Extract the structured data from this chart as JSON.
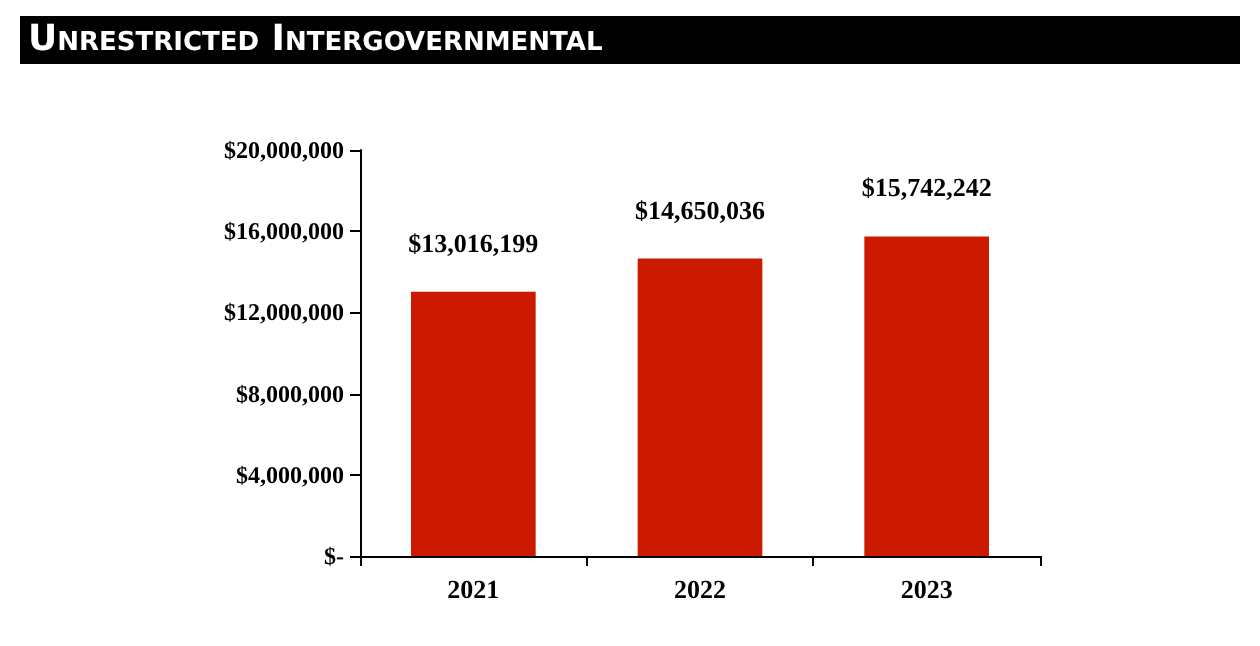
{
  "chart_data": {
    "type": "bar",
    "title": "Unrestricted Intergovernmental",
    "categories": [
      "2021",
      "2022",
      "2023"
    ],
    "values": [
      13016199,
      14650036,
      15742242
    ],
    "value_labels": [
      "$13,016,199",
      "$14,650,036",
      "$15,742,242"
    ],
    "color": "#cc1a00",
    "ylim": [
      0,
      20000000
    ],
    "yticks": [
      {
        "value": 0,
        "label": "$-"
      },
      {
        "value": 4000000,
        "label": "$4,000,000"
      },
      {
        "value": 8000000,
        "label": "$8,000,000"
      },
      {
        "value": 12000000,
        "label": "$12,000,000"
      },
      {
        "value": 16000000,
        "label": "$16,000,000"
      },
      {
        "value": 20000000,
        "label": "$20,000,000"
      }
    ],
    "grid": false
  }
}
